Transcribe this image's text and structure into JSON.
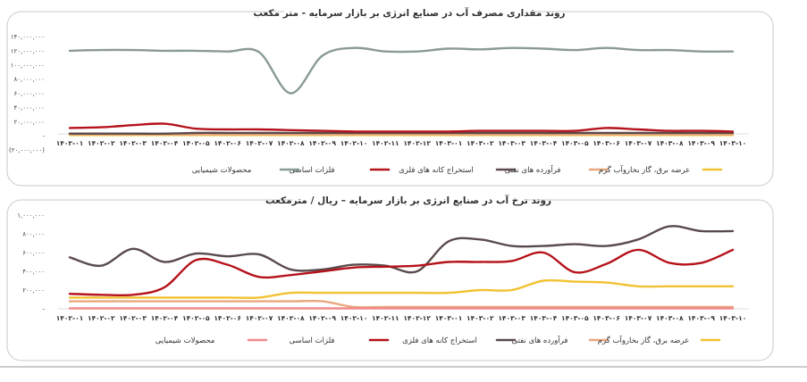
{
  "chart_data": [
    {
      "type": "line",
      "title": "روند مقداری مصرف آب در صنایع انرژی بر بازار سرمایه - متر مکعب",
      "categories": [
        "۱۴۰۲-۰۱",
        "۱۴۰۲-۰۲",
        "۱۴۰۲-۰۳",
        "۱۴۰۲-۰۴",
        "۱۴۰۲-۰۵",
        "۱۴۰۲-۰۶",
        "۱۴۰۲-۰۷",
        "۱۴۰۲-۰۸",
        "۱۴۰۲-۰۹",
        "۱۴۰۲-۱۰",
        "۱۴۰۲-۱۱",
        "۱۴۰۲-۱۲",
        "۱۴۰۳-۰۱",
        "۱۴۰۳-۰۲",
        "۱۴۰۳-۰۳",
        "۱۴۰۳-۰۴",
        "۱۴۰۳-۰۵",
        "۱۴۰۳-۰۶",
        "۱۴۰۳-۰۷",
        "۱۴۰۳-۰۸",
        "۱۴۰۳-۰۹",
        "۱۴۰۳-۱۰"
      ],
      "ylim": [
        -20000000,
        140000000
      ],
      "yticks": [
        140000000,
        120000000,
        100000000,
        80000000,
        60000000,
        40000000,
        20000000,
        0,
        -20000000
      ],
      "ytick_labels": [
        "۱۴۰,۰۰۰,۰۰۰",
        "۱۲۰,۰۰۰,۰۰۰",
        "۱۰۰,۰۰۰,۰۰۰",
        "۸۰,۰۰۰,۰۰۰",
        "۶۰,۰۰۰,۰۰۰",
        "۴۰,۰۰۰,۰۰۰",
        "۲۰,۰۰۰,۰۰۰",
        "-",
        "(۲۰,۰۰۰,۰۰۰)"
      ],
      "grid": false,
      "legend_position": "bottom",
      "series": [
        {
          "name": "محصولات شیمیایی",
          "color": "#8a9a96",
          "values": [
            120000000,
            121000000,
            121000000,
            120000000,
            120000000,
            119000000,
            118000000,
            60000000,
            113000000,
            124000000,
            119000000,
            119000000,
            123000000,
            122000000,
            124000000,
            123000000,
            121000000,
            124000000,
            121000000,
            121000000,
            119000000,
            119000000
          ]
        },
        {
          "name": "فلزات اساسی",
          "color": "#b5121b",
          "values": [
            11000000,
            12000000,
            15000000,
            17000000,
            10000000,
            9000000,
            9000000,
            8000000,
            7000000,
            6000000,
            6000000,
            6000000,
            6000000,
            7000000,
            7000000,
            7000000,
            7000000,
            11000000,
            9000000,
            7000000,
            7000000,
            6000000
          ]
        },
        {
          "name": "استخراج کانه های فلزی",
          "color": "#5a4a4c",
          "values": [
            3000000,
            3000000,
            3000000,
            3000000,
            4000000,
            4000000,
            4000000,
            4000000,
            4000000,
            4000000,
            4000000,
            4000000,
            4000000,
            4000000,
            4000000,
            4000000,
            4000000,
            4000000,
            4000000,
            4000000,
            4000000,
            4000000
          ]
        },
        {
          "name": "فرآورده های نفتی",
          "color": "#e9a77d",
          "values": [
            2000000,
            2000000,
            2000000,
            2000000,
            2000000,
            2000000,
            2000000,
            2000000,
            2000000,
            2000000,
            2000000,
            2000000,
            2000000,
            2000000,
            2000000,
            2000000,
            2000000,
            2000000,
            2000000,
            2000000,
            2000000,
            2000000
          ]
        },
        {
          "name": "عرضه برق، گاز بخاروآب گرم",
          "color": "#f1c232",
          "values": [
            1000000,
            1000000,
            1000000,
            1000000,
            1000000,
            1000000,
            1000000,
            1000000,
            1000000,
            1000000,
            1000000,
            1000000,
            1000000,
            1000000,
            1000000,
            1000000,
            1000000,
            1000000,
            1000000,
            1000000,
            1000000,
            1000000
          ]
        }
      ]
    },
    {
      "type": "line",
      "title": "روند نرخ آب در صنایع انرژی بر بازار سرمایه – ریال / مترمکعب",
      "categories": [
        "۱۴۰۲-۰۱",
        "۱۴۰۲-۰۲",
        "۱۴۰۲-۰۳",
        "۱۴۰۲-۰۴",
        "۱۴۰۲-۰۵",
        "۱۴۰۲-۰۶",
        "۱۴۰۲-۰۷",
        "۱۴۰۲-۰۸",
        "۱۴۰۲-۰۹",
        "۱۴۰۲-۱۰",
        "۱۴۰۲-۱۱",
        "۱۴۰۲-۱۲",
        "۱۴۰۳-۰۱",
        "۱۴۰۳-۰۲",
        "۱۴۰۳-۰۳",
        "۱۴۰۳-۰۴",
        "۱۴۰۳-۰۵",
        "۱۴۰۳-۰۶",
        "۱۴۰۳-۰۷",
        "۱۴۰۳-۰۸",
        "۱۴۰۳-۰۹",
        "۱۴۰۳-۱۰"
      ],
      "ylim": [
        0,
        1000000
      ],
      "yticks": [
        1000000,
        800000,
        600000,
        400000,
        200000,
        0
      ],
      "ytick_labels": [
        "۱,۰۰۰,۰۰۰",
        "۸۰۰,۰۰۰",
        "۶۰۰,۰۰۰",
        "۴۰۰,۰۰۰",
        "۲۰۰,۰۰۰",
        "-"
      ],
      "grid": false,
      "legend_position": "bottom",
      "series": [
        {
          "name": "محصولات شیمیایی",
          "color": "#f08a8a",
          "values": [
            5000,
            5000,
            5000,
            5000,
            5000,
            5000,
            5000,
            5000,
            5000,
            5000,
            5000,
            5000,
            5000,
            5000,
            5000,
            5000,
            5000,
            5000,
            5000,
            5000,
            5000,
            5000
          ]
        },
        {
          "name": "فلزات اساسی",
          "color": "#b5121b",
          "values": [
            160000,
            150000,
            150000,
            230000,
            520000,
            470000,
            340000,
            360000,
            400000,
            440000,
            450000,
            460000,
            500000,
            500000,
            510000,
            600000,
            390000,
            480000,
            630000,
            490000,
            490000,
            630000
          ]
        },
        {
          "name": "استخراج کانه های فلزی",
          "color": "#5a4a4c",
          "values": [
            550000,
            460000,
            640000,
            500000,
            590000,
            560000,
            580000,
            420000,
            420000,
            470000,
            460000,
            400000,
            720000,
            740000,
            670000,
            670000,
            690000,
            670000,
            740000,
            880000,
            830000,
            830000
          ]
        },
        {
          "name": "فرآورده های نفتی",
          "color": "#e9a77d",
          "values": [
            80000,
            80000,
            80000,
            80000,
            80000,
            80000,
            80000,
            80000,
            80000,
            20000,
            20000,
            20000,
            20000,
            20000,
            20000,
            20000,
            20000,
            20000,
            20000,
            20000,
            20000,
            20000
          ]
        },
        {
          "name": "عرضه برق، گاز بخاروآب گرم",
          "color": "#f1c232",
          "values": [
            120000,
            120000,
            120000,
            120000,
            120000,
            120000,
            120000,
            170000,
            170000,
            170000,
            170000,
            170000,
            170000,
            200000,
            200000,
            300000,
            290000,
            280000,
            240000,
            240000,
            240000,
            240000
          ]
        }
      ]
    }
  ]
}
